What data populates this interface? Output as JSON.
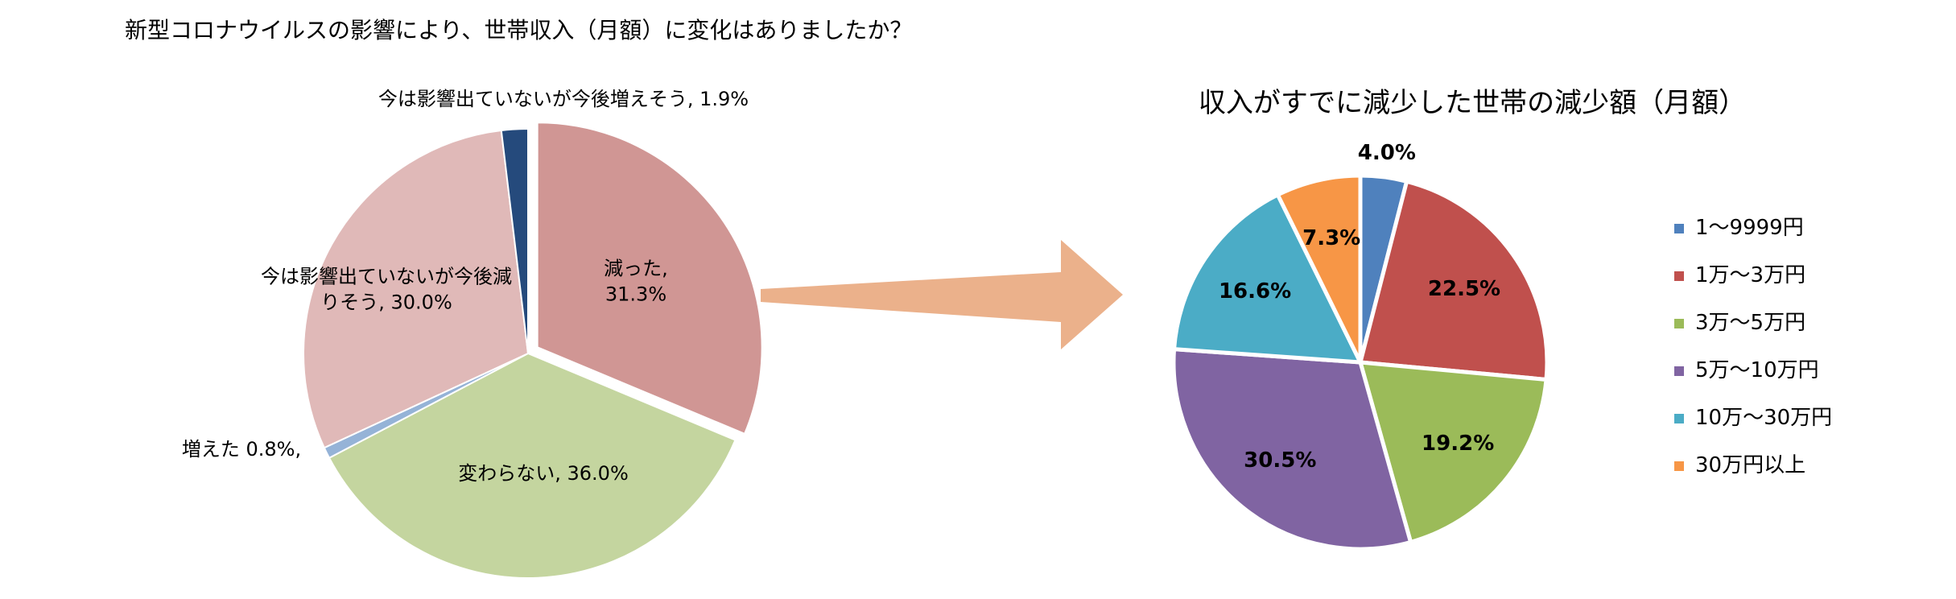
{
  "chart_data": [
    {
      "type": "pie",
      "title": "新型コロナウイルスの影響により、世帯収入（月額）に変化はありましたか？",
      "categories": [
        "減った,",
        "変わらない,",
        "増えた",
        "今は影響出ていないが今後減りそう,",
        "今は影響出ていないが今後増えそう,"
      ],
      "values": [
        31.3,
        36.0,
        0.8,
        30.0,
        1.9
      ],
      "value_labels": [
        "31.3%",
        "36.0%",
        "0.8%,",
        "30.0%",
        "1.9%"
      ],
      "colors": [
        "#d09694",
        "#c4d59f",
        "#95b3d7",
        "#e0b9b8",
        "#254a7c"
      ]
    },
    {
      "type": "pie",
      "title": "収入がすでに減少した世帯の減少額（月額）",
      "categories": [
        "1〜9999円",
        "1万〜3万円",
        "3万〜5万円",
        "5万〜10万円",
        "10万〜30万円",
        "30万円以上"
      ],
      "values": [
        4.0,
        22.5,
        19.2,
        30.5,
        16.6,
        7.3
      ],
      "value_labels": [
        "4.0%",
        "22.5%",
        "19.2%",
        "30.5%",
        "16.6%",
        "7.3%"
      ],
      "colors": [
        "#4f81bd",
        "#c0504d",
        "#9bbb59",
        "#8064a2",
        "#4bacc6",
        "#f79646"
      ],
      "legend": "right"
    }
  ]
}
